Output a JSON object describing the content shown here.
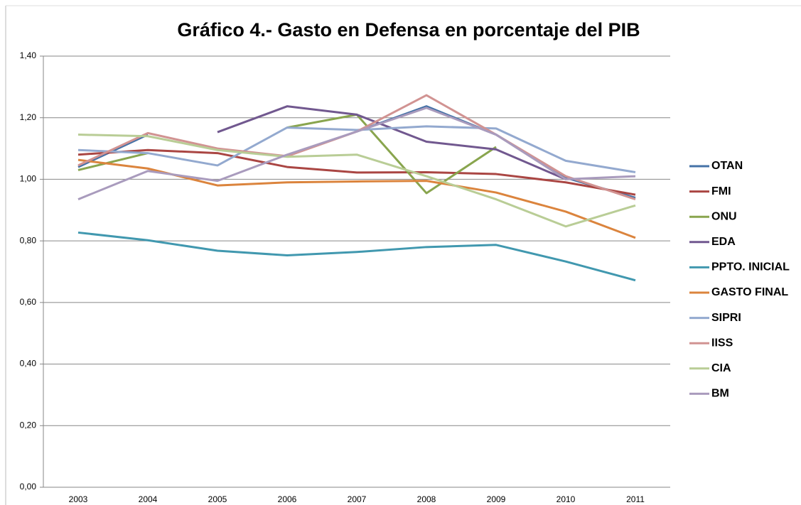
{
  "chart_data": {
    "type": "line",
    "title": "Gráfico 4.- Gasto en Defensa en porcentaje del PIB",
    "categories": [
      "2003",
      "2004",
      "2005",
      "2006",
      "2007",
      "2008",
      "2009",
      "2010",
      "2011"
    ],
    "ylim": [
      0,
      1.4
    ],
    "yticks": [
      {
        "value": 0,
        "label": "0,00"
      },
      {
        "value": 0.2,
        "label": "0,20"
      },
      {
        "value": 0.4,
        "label": "0,40"
      },
      {
        "value": 0.6,
        "label": "0,60"
      },
      {
        "value": 0.8,
        "label": "0,80"
      },
      {
        "value": 1.0,
        "label": "1,00"
      },
      {
        "value": 1.2,
        "label": "1,20"
      },
      {
        "value": 1.4,
        "label": "1,40"
      }
    ],
    "grid": true,
    "legend": "right",
    "series": [
      {
        "name": "OTAN",
        "color": "#4572a7",
        "values": [
          1.04,
          1.145,
          null,
          null,
          1.155,
          1.237,
          1.145,
          1.005,
          0.94
        ]
      },
      {
        "name": "FMI",
        "color": "#aa4643",
        "values": [
          1.08,
          1.095,
          1.085,
          1.04,
          1.022,
          1.023,
          1.017,
          0.99,
          0.95
        ]
      },
      {
        "name": "ONU",
        "color": "#89a54e",
        "values": [
          1.03,
          1.085,
          null,
          1.168,
          1.21,
          0.955,
          1.105,
          null,
          null
        ]
      },
      {
        "name": "EDA",
        "color": "#71588f",
        "values": [
          null,
          null,
          1.153,
          1.237,
          1.21,
          1.122,
          1.097,
          1.0,
          null
        ]
      },
      {
        "name": "PPTO. INICIAL",
        "color": "#4198af",
        "values": [
          0.827,
          0.802,
          0.768,
          0.753,
          0.764,
          0.78,
          0.787,
          0.733,
          0.672
        ]
      },
      {
        "name": "GASTO FINAL",
        "color": "#db843d",
        "values": [
          1.063,
          1.035,
          0.98,
          0.99,
          0.993,
          0.995,
          0.957,
          0.895,
          0.81
        ]
      },
      {
        "name": "SIPRI",
        "color": "#93a9cf",
        "values": [
          1.095,
          1.085,
          1.045,
          1.168,
          1.16,
          1.172,
          1.165,
          1.06,
          1.023
        ]
      },
      {
        "name": "IISS",
        "color": "#d19392",
        "values": [
          1.045,
          1.15,
          1.1,
          1.075,
          1.155,
          1.273,
          1.145,
          1.01,
          0.935
        ]
      },
      {
        "name": "CIA",
        "color": "#b9cd96",
        "values": [
          1.145,
          1.14,
          1.095,
          1.073,
          1.08,
          1.01,
          0.935,
          0.847,
          0.915
        ]
      },
      {
        "name": "BM",
        "color": "#a99bbd",
        "values": [
          0.935,
          1.027,
          0.995,
          1.08,
          1.155,
          1.232,
          1.145,
          1.0,
          1.01
        ]
      }
    ]
  }
}
